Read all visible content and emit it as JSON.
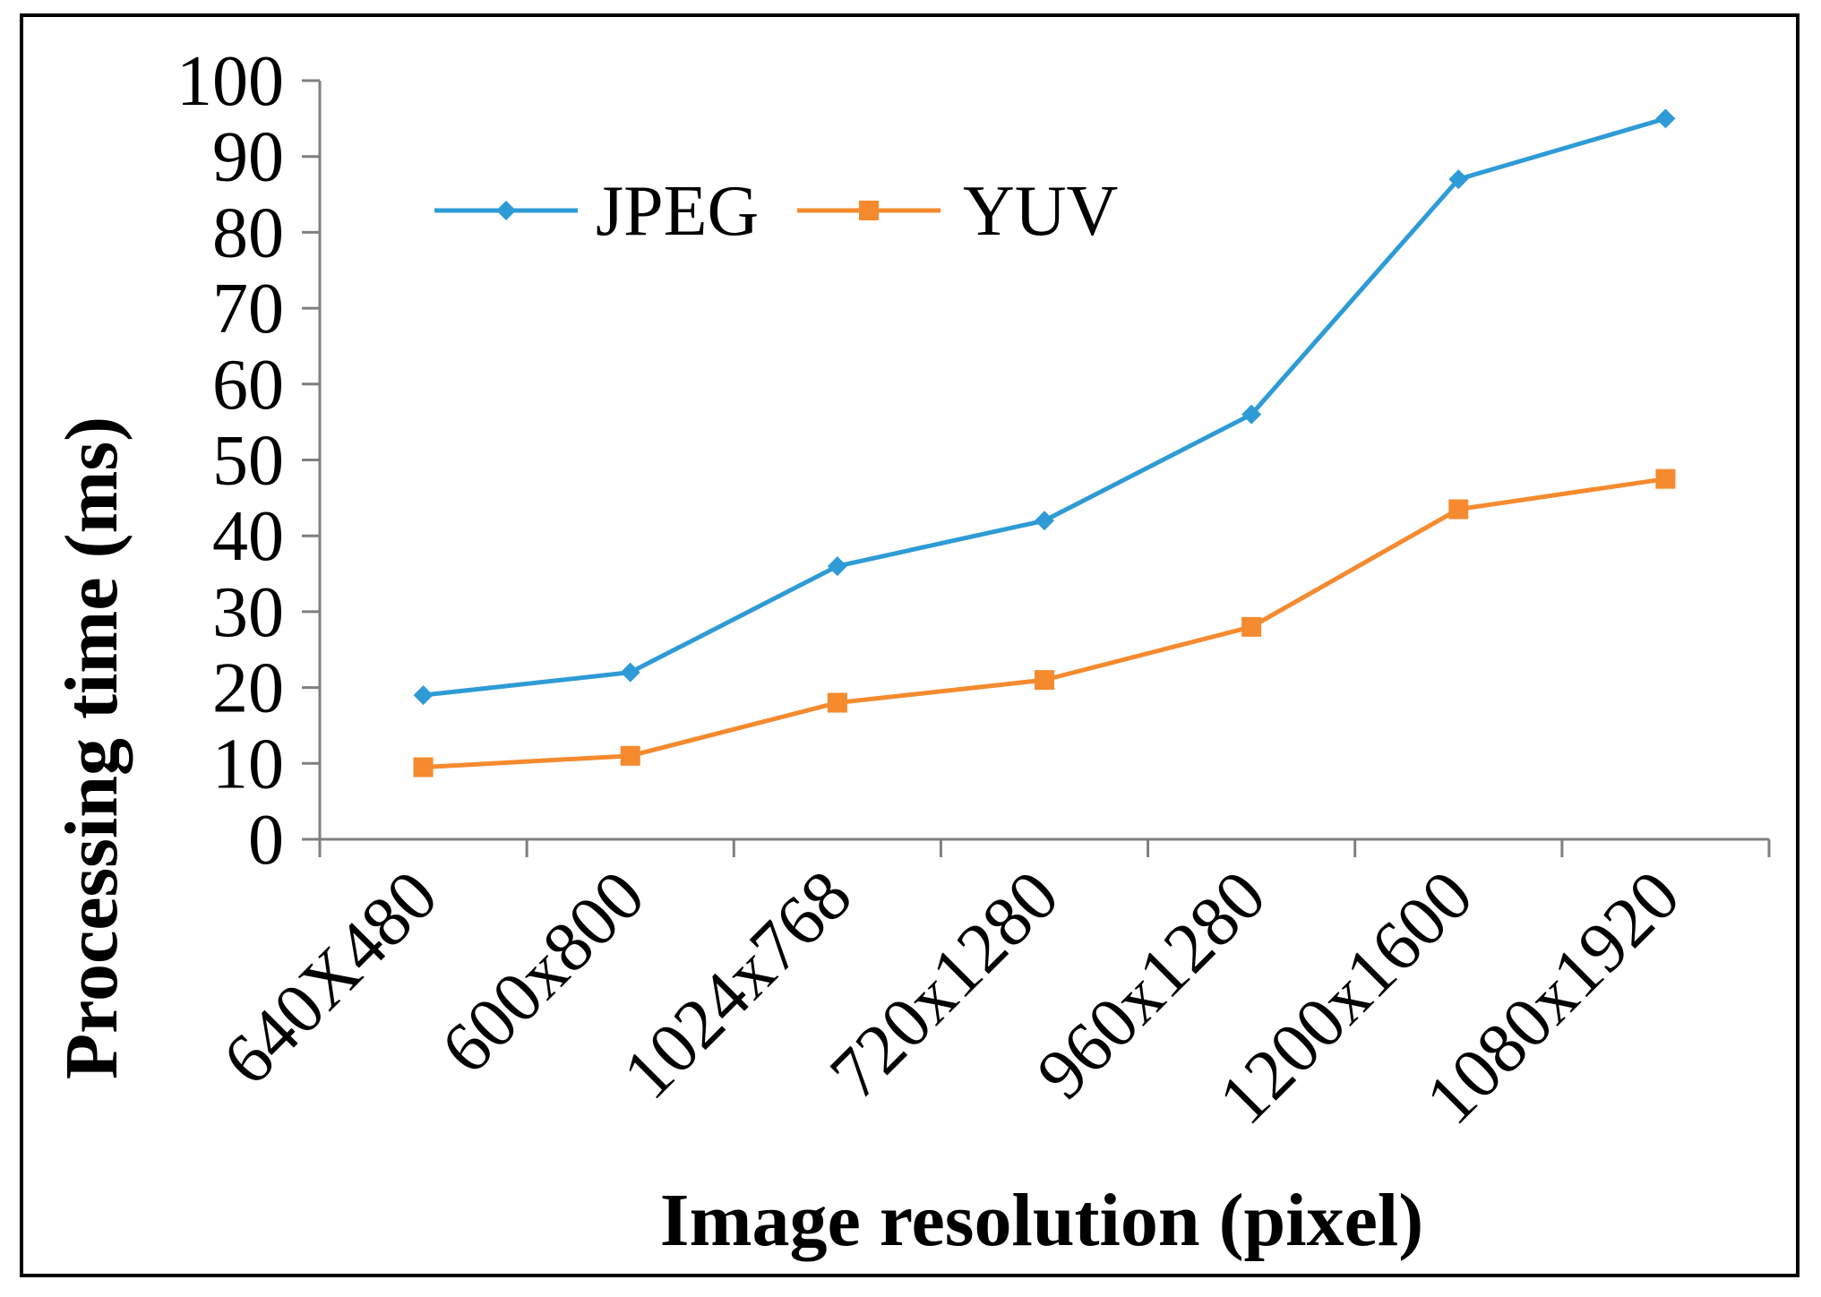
{
  "chart_data": {
    "type": "line",
    "title": "",
    "xlabel": "Image resolution (pixel)",
    "ylabel": "Processing time (ms)",
    "ylim": [
      0,
      100
    ],
    "yticks": [
      0,
      10,
      20,
      30,
      40,
      50,
      60,
      70,
      80,
      90,
      100
    ],
    "grid": false,
    "legend_position": "top-left",
    "categories": [
      "640X480",
      "600x800",
      "1024x768",
      "720x1280",
      "960x1280",
      "1200x1600",
      "1080x1920"
    ],
    "series": [
      {
        "name": "JPEG",
        "marker": "diamond",
        "color": "#2E9BD6",
        "values": [
          19,
          22,
          36,
          42,
          56,
          87,
          95
        ]
      },
      {
        "name": "YUV",
        "marker": "square",
        "color": "#F58A2E",
        "values": [
          9.5,
          11,
          18,
          21,
          28,
          43.5,
          47.5
        ]
      }
    ]
  }
}
